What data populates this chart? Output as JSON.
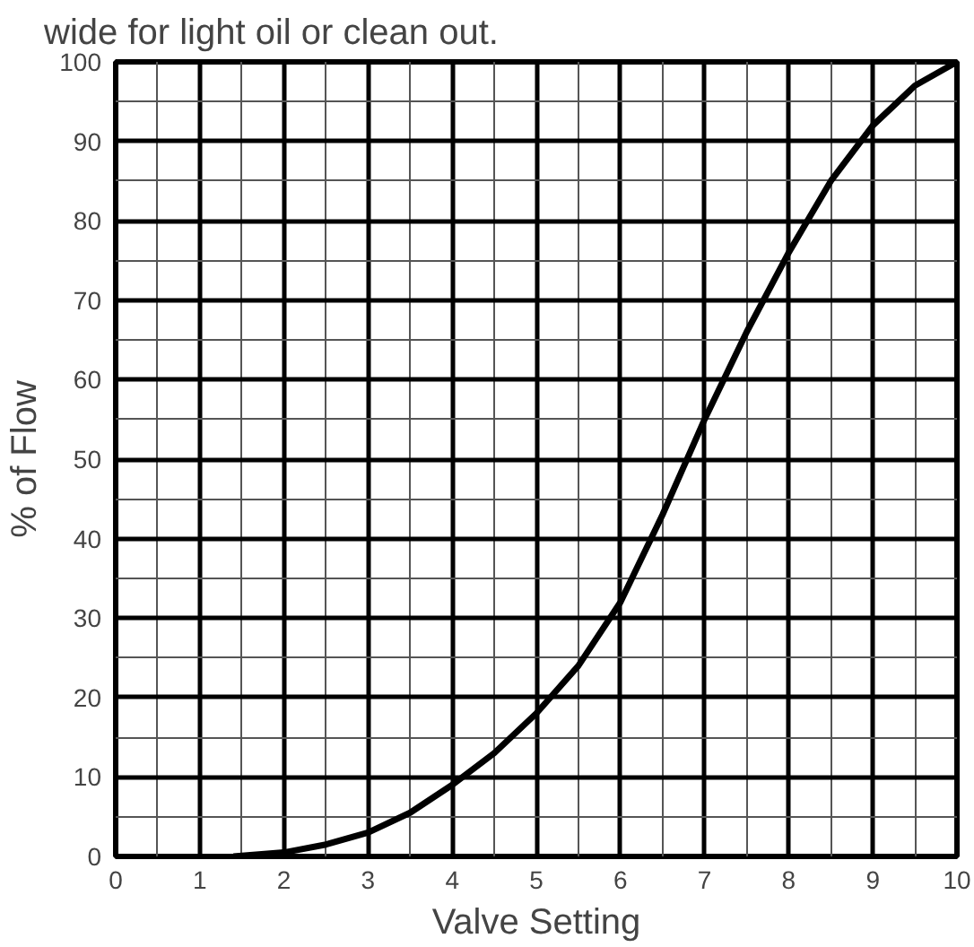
{
  "chart_data": {
    "type": "line",
    "title": "wide for light oil or clean out.",
    "xlabel": "Valve Setting",
    "ylabel": "% of Flow",
    "x": [
      1.4,
      2,
      2.5,
      3,
      3.5,
      4,
      4.5,
      5,
      5.5,
      6,
      6.5,
      7,
      7.5,
      8,
      8.5,
      9,
      9.5,
      10
    ],
    "series": [
      {
        "color": "#000000",
        "values": [
          0,
          0.5,
          1.5,
          3,
          5.5,
          9,
          13,
          18,
          24,
          32,
          43,
          55,
          66,
          76,
          85,
          92,
          97,
          100
        ]
      }
    ],
    "xlim": [
      0,
      10
    ],
    "ylim": [
      0,
      100
    ],
    "xticks": [
      0,
      1,
      2,
      3,
      4,
      5,
      6,
      7,
      8,
      9,
      10
    ],
    "yticks": [
      0,
      10,
      20,
      30,
      40,
      50,
      60,
      70,
      80,
      90,
      100
    ],
    "grid": true,
    "marker": "none",
    "line_style": "solid"
  }
}
